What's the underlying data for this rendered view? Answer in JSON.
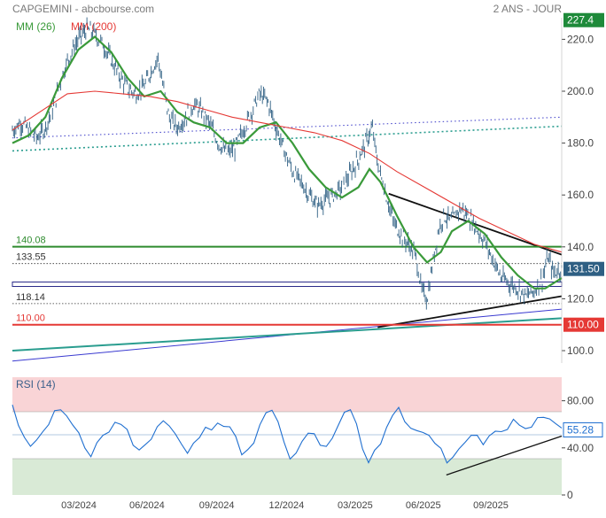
{
  "header": {
    "title": "CAPGEMINI - abcbourse.com",
    "period": "2 ANS - JOUR",
    "ma_short": "MM (26)",
    "ma_long": "MM (200)",
    "rsi_label": "RSI (14)"
  },
  "colors": {
    "price": "#2e5f83",
    "ma_short": "#3a9a3a",
    "ma_long": "#e53935",
    "rsi": "#1f6fd0",
    "support_red": "#e53935",
    "level_green": "#2e8b2e",
    "last_badge": "#2e5f83",
    "high_badge": "#1e8a3a"
  },
  "chart_data": [
    {
      "type": "line",
      "title": "CAPGEMINI",
      "x_ticks": [
        "03/2024",
        "06/2024",
        "09/2024",
        "12/2024",
        "03/2025",
        "06/2025",
        "09/2025"
      ],
      "y_ticks": [
        100,
        120,
        140,
        160,
        180,
        200,
        220
      ],
      "ylim": [
        95,
        227
      ],
      "grid": false,
      "legend": "top-left",
      "price_scale_labels": {
        "high": "227.4",
        "last": "131.50",
        "support": "110.00"
      },
      "horizontal_levels": [
        {
          "value": 140.08,
          "label": "140.08",
          "style": "solid-green"
        },
        {
          "value": 133.55,
          "label": "133.55",
          "style": "dotted-black"
        },
        {
          "value": 125.6,
          "label": "",
          "style": "blue-band"
        },
        {
          "value": 118.14,
          "label": "118.14",
          "style": "dotted-black"
        },
        {
          "value": 110.0,
          "label": "110.00",
          "style": "solid-red"
        }
      ],
      "series": [
        {
          "name": "",
          "role": "price",
          "x_range": [
            0,
            100
          ],
          "points": [
            [
              0,
              185
            ],
            [
              1.5,
              188
            ],
            [
              3,
              185
            ],
            [
              4.5,
              182
            ],
            [
              6,
              186
            ],
            [
              7.5,
              194
            ],
            [
              9,
              206
            ],
            [
              10.5,
              214
            ],
            [
              12,
              220
            ],
            [
              13.5,
              224
            ],
            [
              15,
              222
            ],
            [
              16.5,
              218
            ],
            [
              18,
              212
            ],
            [
              19.5,
              206
            ],
            [
              21,
              201
            ],
            [
              22.5,
              199
            ],
            [
              24,
              202
            ],
            [
              25.5,
              209
            ],
            [
              26.5,
              213
            ],
            [
              27.5,
              201
            ],
            [
              28.5,
              190
            ],
            [
              30,
              186
            ],
            [
              31.5,
              190
            ],
            [
              33,
              195
            ],
            [
              34.5,
              192
            ],
            [
              36,
              187
            ],
            [
              37.5,
              180
            ],
            [
              39,
              176
            ],
            [
              40.5,
              178
            ],
            [
              42,
              185
            ],
            [
              43.5,
              192
            ],
            [
              45,
              199
            ],
            [
              46.5,
              196
            ],
            [
              48,
              186
            ],
            [
              49.5,
              177
            ],
            [
              51,
              169
            ],
            [
              52.5,
              165
            ],
            [
              54,
              160
            ],
            [
              55.5,
              156
            ],
            [
              57,
              158
            ],
            [
              58.5,
              160
            ],
            [
              60,
              163
            ],
            [
              61.5,
              168
            ],
            [
              63,
              174
            ],
            [
              64.5,
              181
            ],
            [
              65.5,
              186
            ],
            [
              66.5,
              172
            ],
            [
              68,
              160
            ],
            [
              69.5,
              149
            ],
            [
              71,
              144
            ],
            [
              72.5,
              140
            ],
            [
              73.5,
              136
            ],
            [
              74.5,
              123
            ],
            [
              75.5,
              120
            ],
            [
              76.5,
              133
            ],
            [
              77.5,
              146
            ],
            [
              78.5,
              152
            ],
            [
              80,
              150
            ],
            [
              81.5,
              155
            ],
            [
              83,
              152
            ],
            [
              84.5,
              147
            ],
            [
              86,
              142
            ],
            [
              87.5,
              135
            ],
            [
              89,
              128
            ],
            [
              90.5,
              126
            ],
            [
              92,
              124
            ],
            [
              93.5,
              121
            ],
            [
              95,
              123
            ],
            [
              96.5,
              128
            ],
            [
              97.5,
              136
            ],
            [
              98.5,
              130
            ],
            [
              100,
              131.5
            ]
          ]
        },
        {
          "name": "MM (26)",
          "role": "ma26",
          "x_range": [
            0,
            100
          ],
          "points": [
            [
              0,
              180
            ],
            [
              3,
              183
            ],
            [
              6,
              190
            ],
            [
              9,
              205
            ],
            [
              12,
              216
            ],
            [
              15,
              221
            ],
            [
              18,
              215
            ],
            [
              21,
              205
            ],
            [
              24,
              198
            ],
            [
              27,
              200
            ],
            [
              30,
              192
            ],
            [
              33,
              188
            ],
            [
              36,
              186
            ],
            [
              39,
              180
            ],
            [
              42,
              180
            ],
            [
              45,
              186
            ],
            [
              48,
              188
            ],
            [
              51,
              180
            ],
            [
              54,
              170
            ],
            [
              57,
              163
            ],
            [
              60,
              159
            ],
            [
              63,
              163
            ],
            [
              65,
              170
            ],
            [
              67,
              165
            ],
            [
              70,
              152
            ],
            [
              73,
              140
            ],
            [
              75.5,
              134
            ],
            [
              78,
              138
            ],
            [
              80,
              146
            ],
            [
              83,
              150
            ],
            [
              86,
              145
            ],
            [
              89,
              136
            ],
            [
              92,
              129
            ],
            [
              95,
              124
            ],
            [
              97,
              124
            ],
            [
              100,
              128
            ]
          ]
        },
        {
          "name": "MM (200)",
          "role": "ma200",
          "x_range": [
            0,
            100
          ],
          "points": [
            [
              0,
              185
            ],
            [
              5,
              192
            ],
            [
              10,
              199
            ],
            [
              15,
              200
            ],
            [
              20,
              199
            ],
            [
              25,
              198
            ],
            [
              30,
              196
            ],
            [
              35,
              193
            ],
            [
              40,
              190
            ],
            [
              45,
              188
            ],
            [
              50,
              186
            ],
            [
              55,
              184
            ],
            [
              60,
              181
            ],
            [
              65,
              176
            ],
            [
              70,
              169
            ],
            [
              75,
              163
            ],
            [
              80,
              157
            ],
            [
              85,
              151
            ],
            [
              90,
              146
            ],
            [
              95,
              141
            ],
            [
              100,
              138
            ]
          ]
        }
      ]
    },
    {
      "type": "line",
      "title": "RSI (14)",
      "ylim": [
        0,
        100
      ],
      "y_ticks": [
        0,
        40,
        80
      ],
      "zones": [
        {
          "from": 70,
          "to": 100,
          "color": "#f9d4d6"
        },
        {
          "from": 0,
          "to": 30,
          "color": "#d9ead6"
        }
      ],
      "mid_line": 50,
      "last_value": "55.28",
      "series": [
        {
          "name": "RSI (14)",
          "x_range": [
            0,
            100
          ],
          "values": [
            75,
            60,
            48,
            42,
            45,
            55,
            62,
            70,
            72,
            68,
            58,
            50,
            40,
            35,
            42,
            48,
            55,
            60,
            62,
            55,
            45,
            38,
            42,
            50,
            58,
            62,
            60,
            52,
            45,
            38,
            42,
            48,
            55,
            58,
            62,
            60,
            58,
            48,
            35,
            38,
            45,
            58,
            68,
            72,
            60,
            45,
            30,
            38,
            48,
            55,
            50,
            45,
            42,
            48,
            58,
            68,
            72,
            60,
            42,
            28,
            35,
            45,
            58,
            68,
            72,
            65,
            58,
            55,
            52,
            48,
            45,
            38,
            25,
            30,
            38,
            45,
            50,
            48,
            45,
            48,
            52,
            55,
            58,
            62,
            60,
            55,
            58,
            64,
            68,
            62,
            58,
            55
          ]
        }
      ]
    }
  ]
}
